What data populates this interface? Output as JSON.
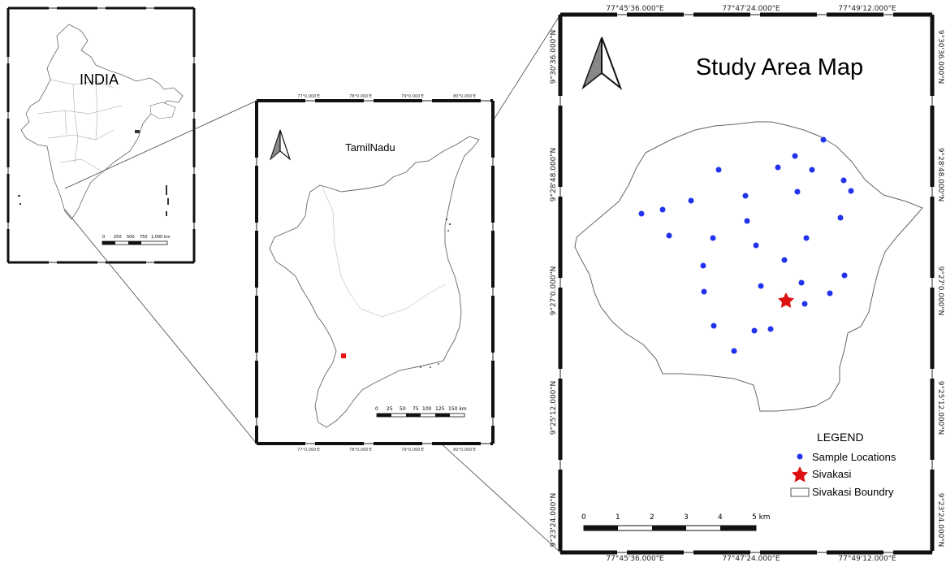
{
  "india_map": {
    "title": "INDIA",
    "scalebar": {
      "labels": [
        "0",
        "250",
        "500",
        "750",
        "1,000 km"
      ]
    }
  },
  "tamilnadu_map": {
    "title": "TamilNadu",
    "scalebar": {
      "labels": [
        "0",
        "25",
        "50",
        "75",
        "100",
        "125",
        "150 km"
      ]
    },
    "top_ticks": [
      "77°0.000'E",
      "78°0.000'E",
      "79°0.000'E",
      "80°0.000'E"
    ],
    "bottom_ticks": [
      "77°0.000'E",
      "78°0.000'E",
      "79°0.000'E",
      "80°0.000'E"
    ]
  },
  "study_map": {
    "title": "Study Area Map",
    "top_ticks": [
      "77°45'36.000\"E",
      "77°47'24.000\"E",
      "77°49'12.000\"E"
    ],
    "bottom_ticks": [
      "77°45'36.000\"E",
      "77°47'24.000\"E",
      "77°49'12.000\"E"
    ],
    "left_ticks": [
      "9°30'36.000\"N",
      "9°28'48.000\"N",
      "9°27'0.000\"N",
      "9°25'12.000\"N",
      "9°23'24.000\"N"
    ],
    "right_ticks": [
      "9°30'36.000\"N",
      "9°28'48.000\"N",
      "9°27'0.000\"N",
      "9°25'12.000\"N",
      "9°23'24.000\"N"
    ],
    "scalebar": {
      "labels": [
        "0",
        "1",
        "2",
        "3",
        "4",
        "5 km"
      ]
    },
    "legend": {
      "title": "LEGEND",
      "items": [
        {
          "label": "Sample Locations",
          "symbol": "blue-dot",
          "color": "#2233ee"
        },
        {
          "label": "Sivakasi",
          "symbol": "red-star",
          "color": "#dd1111"
        },
        {
          "label": "Sivakasi Boundry",
          "symbol": "boundary-box",
          "color": "#555555"
        }
      ]
    }
  }
}
